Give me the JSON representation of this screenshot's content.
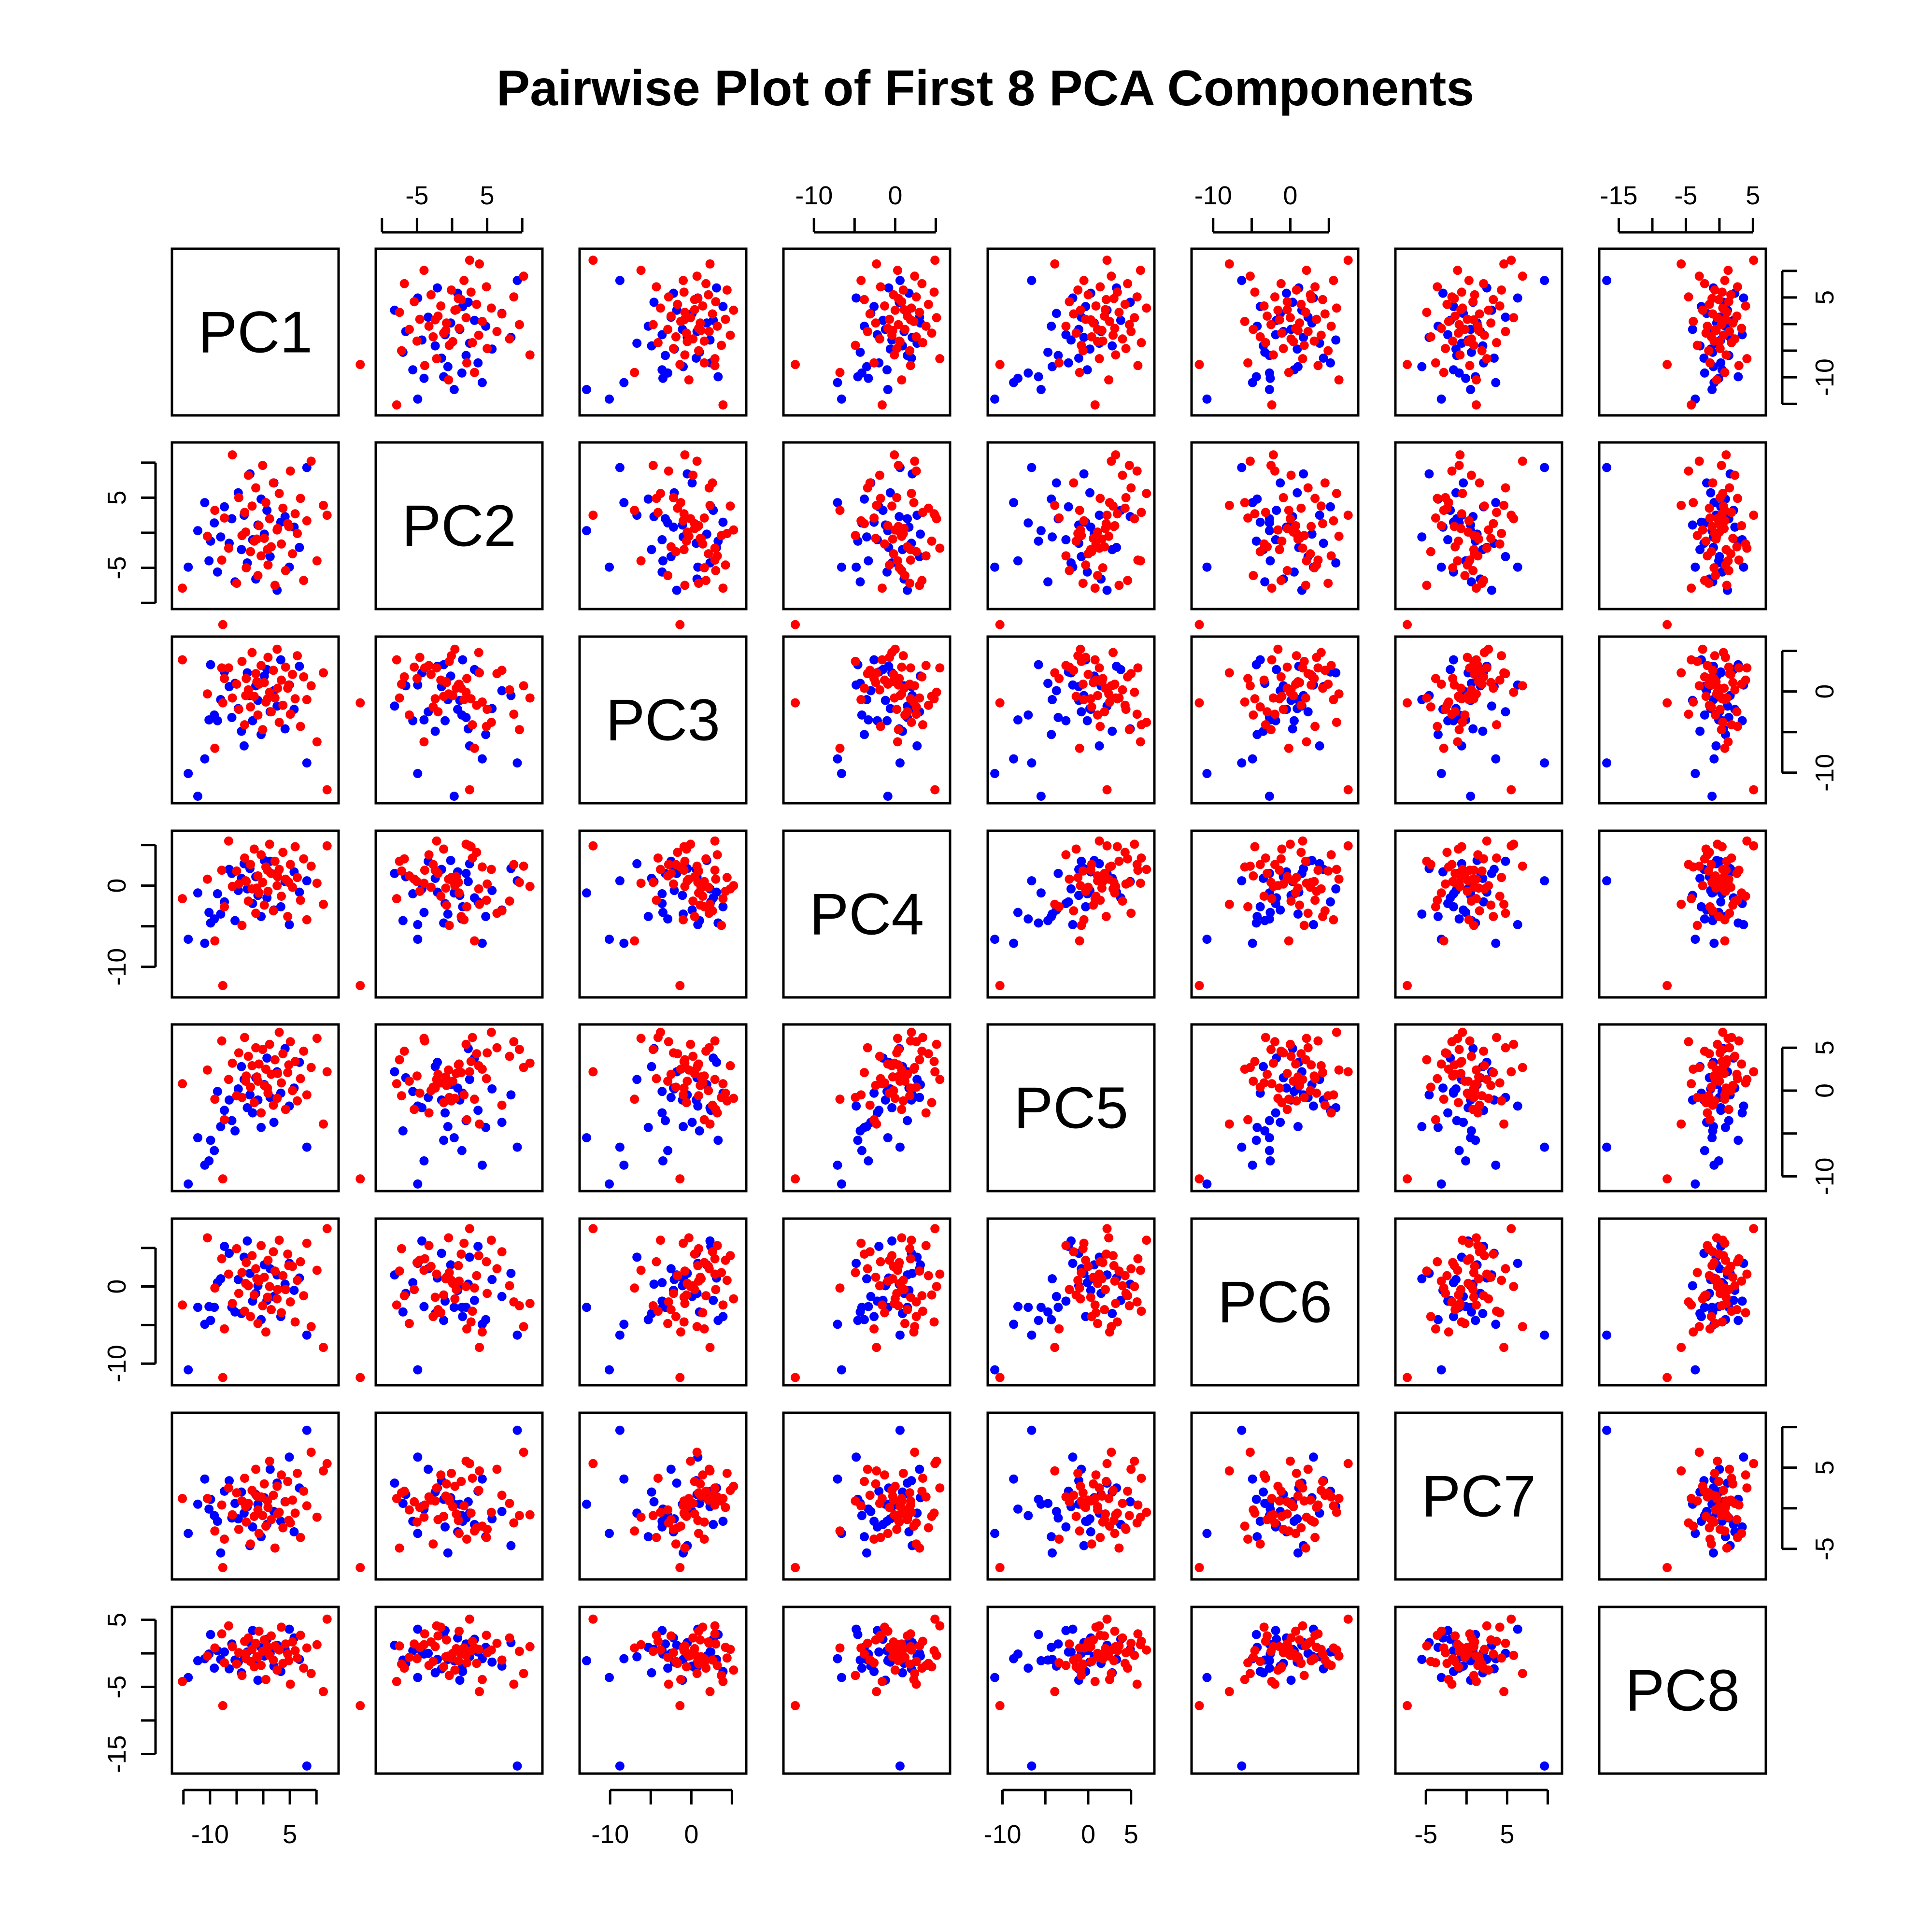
{
  "chart_data": {
    "type": "scatter",
    "subtype": "pairs",
    "title": "Pairwise Plot of First 8 PCA Components",
    "variables": [
      "PC1",
      "PC2",
      "PC3",
      "PC4",
      "PC5",
      "PC6",
      "PC7",
      "PC8"
    ],
    "ranges": [
      [
        -16,
        13
      ],
      [
        -10,
        12
      ],
      [
        -13,
        6
      ],
      [
        -13,
        6
      ],
      [
        -11,
        7
      ],
      [
        -12,
        8
      ],
      [
        -8,
        11
      ],
      [
        -17,
        6
      ]
    ],
    "ticks": [
      [
        -15,
        -10,
        -5,
        0,
        5,
        10
      ],
      [
        -10,
        -5,
        0,
        5,
        10
      ],
      [
        -10,
        -5,
        0,
        5
      ],
      [
        -10,
        -5,
        0,
        5
      ],
      [
        -10,
        -5,
        0,
        5
      ],
      [
        -10,
        -5,
        0,
        5
      ],
      [
        -5,
        0,
        5,
        10
      ],
      [
        -15,
        -10,
        -5,
        0,
        5
      ]
    ],
    "tick_labels": [
      [
        "-10",
        "5"
      ],
      [
        "-5",
        "5"
      ],
      [
        "-10",
        "0"
      ],
      [
        "-10",
        "0"
      ],
      [
        "-10",
        "0",
        "5"
      ],
      [
        "-10",
        "0"
      ],
      [
        "-5",
        "5"
      ],
      [
        "-15",
        "-5",
        "5"
      ]
    ],
    "tick_label_values": [
      [
        -10,
        5
      ],
      [
        -5,
        5
      ],
      [
        -10,
        0
      ],
      [
        -10,
        0
      ],
      [
        -10,
        0,
        5
      ],
      [
        -10,
        0
      ],
      [
        -5,
        5
      ],
      [
        -15,
        -5,
        5
      ]
    ],
    "series": [
      {
        "color": "#0000ff",
        "points": [
          [
            -14.1,
            -4.9,
            -10.1,
            -6.6,
            -10.9,
            -10.8,
            -3.1,
            -3.6
          ],
          [
            -12.3,
            0.3,
            -12.9,
            -0.9,
            -5.5,
            -2.7,
            0.5,
            -1.1
          ],
          [
            -11.0,
            4.3,
            -8.3,
            -7.1,
            -8.7,
            -4.9,
            3.6,
            -0.8
          ],
          [
            -10.2,
            -4.0,
            -3.5,
            -3.3,
            -8.2,
            -2.6,
            -0.1,
            -0.1
          ],
          [
            -9.9,
            -1.2,
            3.3,
            -4.6,
            -5.8,
            -4.4,
            1.1,
            2.8
          ],
          [
            -9.2,
            1.4,
            -2.9,
            -4.1,
            -7.0,
            -2.7,
            -0.9,
            -2.2
          ],
          [
            -8.6,
            -5.6,
            -3.6,
            -1.0,
            -0.1,
            0.5,
            -1.6,
            0.4
          ],
          [
            -8.0,
            -0.6,
            -1.0,
            -3.5,
            -4.2,
            1.0,
            -5.5,
            -0.9
          ],
          [
            -7.3,
            3.7,
            2.4,
            -2.0,
            -2.3,
            5.2,
            2.1,
            0.2
          ],
          [
            -6.4,
            -1.5,
            0.6,
            2.0,
            -1.1,
            4.3,
            3.4,
            -2.3
          ],
          [
            -5.9,
            2.0,
            -3.2,
            1.5,
            -3.5,
            -2.7,
            -1.2,
            1.4
          ],
          [
            -5.3,
            -7.0,
            1.0,
            -4.3,
            -4.7,
            -3.3,
            0.6,
            -1.0
          ],
          [
            -4.7,
            5.7,
            -2.1,
            -0.6,
            0.2,
            0.9,
            -1.3,
            -1.3
          ],
          [
            -4.1,
            -2.4,
            -4.9,
            0.9,
            2.8,
            -3.5,
            2.0,
            -2.9
          ],
          [
            -3.6,
            2.5,
            -6.7,
            2.7,
            1.3,
            3.8,
            -0.6,
            -0.5
          ],
          [
            -3.0,
            -4.3,
            2.3,
            -0.4,
            -2.0,
            5.9,
            0.2,
            0.2
          ],
          [
            -2.5,
            8.4,
            -0.5,
            2.1,
            -0.5,
            1.7,
            -4.6,
            1.6
          ],
          [
            -2.0,
            -1.0,
            -3.6,
            -2.2,
            -2.6,
            -1.9,
            -2.3,
            3.4
          ],
          [
            -1.4,
            -6.6,
            0.7,
            1.1,
            1.5,
            -0.9,
            1.7,
            -1.5
          ],
          [
            -1.0,
            1.1,
            -1.1,
            -1.2,
            -1.1,
            0.1,
            0.5,
            -4.0
          ],
          [
            -0.4,
            4.8,
            -5.3,
            -3.8,
            -4.3,
            -4.3,
            -3.5,
            0.9
          ],
          [
            0.2,
            -0.2,
            1.9,
            3.1,
            0.7,
            2.8,
            1.3,
            -0.4
          ],
          [
            0.7,
            3.2,
            2.7,
            -1.5,
            3.8,
            -1.8,
            -2.0,
            2.1
          ],
          [
            1.3,
            -3.4,
            -2.5,
            3.0,
            -0.8,
            2.3,
            4.8,
            0.0
          ],
          [
            2.0,
            7.1,
            0.1,
            -3.0,
            -3.7,
            -1.3,
            -0.4,
            -1.9
          ],
          [
            2.6,
            -8.2,
            -1.8,
            1.5,
            2.2,
            1.5,
            3.1,
            1.2
          ],
          [
            3.3,
            1.5,
            3.9,
            -2.6,
            -0.3,
            -3.9,
            -1.6,
            -2.7
          ],
          [
            4.1,
            2.3,
            -4.6,
            0.5,
            4.9,
            0.3,
            0.8,
            0.6
          ],
          [
            4.9,
            -4.9,
            0.8,
            -4.8,
            -1.8,
            3.0,
            6.3,
            3.6
          ],
          [
            5.8,
            0.8,
            -2.2,
            1.7,
            0.3,
            -0.5,
            -2.9,
            2.3
          ],
          [
            6.8,
            -2.1,
            3.1,
            -0.8,
            3.3,
            1.1,
            2.5,
            -0.9
          ],
          [
            8.2,
            9.3,
            -8.8,
            0.6,
            -6.6,
            -6.3,
            9.6,
            -16.8
          ]
        ]
      },
      {
        "color": "#ff0000",
        "points": [
          [
            -10.5,
            -0.5,
            -0.3,
            0.8,
            2.4,
            6.3,
            1.2,
            -0.4
          ],
          [
            -9.1,
            3.2,
            -7.0,
            -6.8,
            -1.0,
            -0.2,
            -2.8,
            0.8
          ],
          [
            -7.8,
            -3.9,
            2.9,
            1.9,
            5.8,
            3.6,
            0.4,
            2.9
          ],
          [
            -7.3,
            2.1,
            1.6,
            -2.6,
            -3.4,
            -5.5,
            -3.8,
            -1.4
          ],
          [
            -6.5,
            -2.2,
            2.9,
            5.5,
            1.3,
            1.6,
            2.5,
            4.1
          ],
          [
            -5.8,
            11.1,
            -0.8,
            -0.1,
            3.2,
            -2.2,
            -0.8,
            1.0
          ],
          [
            -5.0,
            -7.2,
            0.9,
            1.8,
            -0.6,
            4.9,
            1.9,
            -1.6
          ],
          [
            -4.6,
            5.0,
            -2.2,
            0.2,
            4.4,
            -0.9,
            -2.6,
            0.1
          ],
          [
            -4.0,
            -0.4,
            3.7,
            -4.9,
            -0.8,
            1.8,
            0.9,
            -3.3
          ],
          [
            -3.5,
            2.9,
            -4.1,
            3.4,
            6.2,
            -3.2,
            3.7,
            1.8
          ],
          [
            -3.2,
            -5.0,
            1.6,
            0.5,
            1.7,
            3.1,
            -1.7,
            -0.8
          ],
          [
            -2.8,
            8.2,
            0.2,
            -1.9,
            4.0,
            0.1,
            0.6,
            2.3
          ],
          [
            -2.4,
            -2.7,
            -1.9,
            2.6,
            0.4,
            -3.9,
            -4.4,
            -1.2
          ],
          [
            -2.1,
            3.8,
            4.8,
            -0.4,
            2.9,
            4.0,
            2.2,
            0.6
          ],
          [
            -1.7,
            -1.2,
            -0.6,
            4.5,
            -1.4,
            -1.1,
            -1.0,
            -2.0
          ],
          [
            -1.4,
            6.4,
            2.2,
            -3.4,
            5.0,
            2.3,
            4.8,
            1.5
          ],
          [
            -1.0,
            -6.1,
            -2.9,
            1.2,
            1.1,
            -4.8,
            -0.2,
            -0.6
          ],
          [
            -0.8,
            1.0,
            0.9,
            -0.9,
            3.1,
            0.7,
            -3.1,
            3.3
          ],
          [
            -0.4,
            -3.3,
            3.2,
            3.8,
            -2.6,
            5.3,
            1.4,
            -1.8
          ],
          [
            -0.1,
            9.6,
            -4.7,
            0.4,
            4.8,
            -2.5,
            -0.9,
            0.3
          ],
          [
            0.2,
            -0.8,
            1.1,
            -2.4,
            0.6,
            1.2,
            3.0,
            2.0
          ],
          [
            0.5,
            4.3,
            -1.3,
            2.3,
            2.5,
            -5.9,
            -2.2,
            -3.9
          ],
          [
            0.9,
            -4.6,
            4.2,
            -0.7,
            -0.3,
            3.4,
            0.1,
            0.9
          ],
          [
            1.2,
            2.0,
            -0.1,
            5.1,
            5.4,
            0.0,
            5.8,
            -0.3
          ],
          [
            1.5,
            -2.0,
            -2.5,
            1.5,
            1.9,
            -3.0,
            -1.4,
            2.6
          ],
          [
            1.9,
            7.1,
            2.6,
            -3.1,
            -1.7,
            4.5,
            1.6,
            -1.0
          ],
          [
            2.2,
            -7.5,
            -0.8,
            3.0,
            3.6,
            2.0,
            -4.9,
            1.1
          ],
          [
            2.6,
            0.4,
            5.2,
            0.0,
            -0.9,
            -1.6,
            2.7,
            -2.5
          ],
          [
            3.0,
            5.6,
            -3.8,
            2.0,
            6.8,
            6.0,
            -0.5,
            0.5
          ],
          [
            3.4,
            -1.6,
            1.4,
            -1.3,
            0.9,
            -3.4,
            4.1,
            3.9
          ],
          [
            3.7,
            3.5,
            -1.7,
            4.1,
            4.3,
            1.4,
            -2.4,
            -1.5
          ],
          [
            4.2,
            -5.4,
            3.0,
            0.8,
            -2.2,
            -0.4,
            0.8,
            1.4
          ],
          [
            4.6,
            1.3,
            0.4,
            -3.8,
            2.1,
            4.2,
            3.3,
            -0.1
          ],
          [
            5.1,
            8.8,
            -2.8,
            2.6,
            5.7,
            -2.0,
            -1.8,
            -4.6
          ],
          [
            5.5,
            -3.0,
            2.1,
            -0.2,
            0.0,
            2.6,
            1.0,
            1.7
          ],
          [
            6.0,
            2.7,
            -0.9,
            4.8,
            3.4,
            -4.6,
            -0.6,
            0.4
          ],
          [
            6.4,
            -0.1,
            4.4,
            1.0,
            -1.2,
            0.8,
            4.3,
            -0.7
          ],
          [
            7.0,
            4.9,
            -4.3,
            -1.8,
            1.4,
            3.2,
            -3.6,
            2.7
          ],
          [
            7.6,
            -6.8,
            1.8,
            3.3,
            4.6,
            -1.2,
            2.1,
            -2.2
          ],
          [
            8.2,
            1.7,
            -1.0,
            -4.2,
            -0.5,
            5.6,
            0.3,
            0.8
          ],
          [
            9.0,
            10.2,
            0.7,
            2.4,
            2.7,
            -5.2,
            6.9,
            -3.0
          ],
          [
            10.1,
            -4.0,
            -6.2,
            0.3,
            6.1,
            2.1,
            -1.1,
            1.3
          ],
          [
            11.3,
            3.9,
            2.3,
            -2.3,
            -3.9,
            -7.9,
            4.6,
            -5.7
          ],
          [
            -3.3,
            0.1,
            -0.5,
            0.6,
            1.1,
            0.4,
            0.2,
            0.0
          ],
          [
            2.7,
            0.6,
            0.4,
            1.1,
            2.0,
            -0.4,
            -0.7,
            0.7
          ],
          [
            -1.2,
            -0.9,
            1.2,
            -0.3,
            1.6,
            1.0,
            1.5,
            -0.5
          ],
          [
            0.8,
            -2.4,
            -0.9,
            1.9,
            0.3,
            -1.4,
            0.9,
            1.0
          ],
          [
            4.8,
            0.9,
            0.8,
            0.4,
            3.0,
            2.7,
            -1.5,
            -1.1
          ],
          [
            -7.6,
            -13.1,
            -1.4,
            -12.3,
            -10.3,
            -11.8,
            -7.3,
            -7.8
          ],
          [
            12.0,
            2.5,
            -12.1,
            4.9,
            2.2,
            7.5,
            5.5,
            5.1
          ],
          [
            -15.2,
            -7.9,
            3.9,
            -1.6,
            0.8,
            -2.4,
            1.2,
            -4.2
          ]
        ]
      }
    ]
  }
}
